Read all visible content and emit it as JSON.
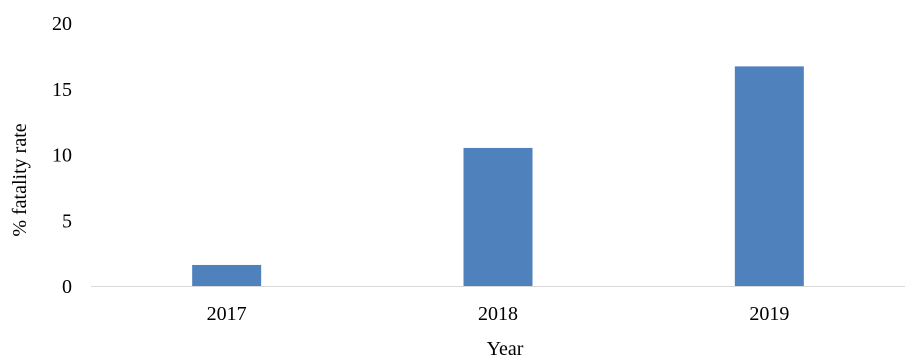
{
  "chart_data": {
    "type": "bar",
    "title": "",
    "xlabel": "Year",
    "ylabel": "% fatality rate",
    "categories": [
      "2017",
      "2018",
      "2019"
    ],
    "values": [
      1.6,
      10.5,
      16.7
    ],
    "ylim": [
      0,
      20
    ],
    "yticks": [
      "0",
      "5",
      "10",
      "15",
      "20"
    ],
    "grid": false,
    "legend": "none",
    "bar_color": "#4F81BD",
    "axis_color": "#D9D9D9"
  }
}
